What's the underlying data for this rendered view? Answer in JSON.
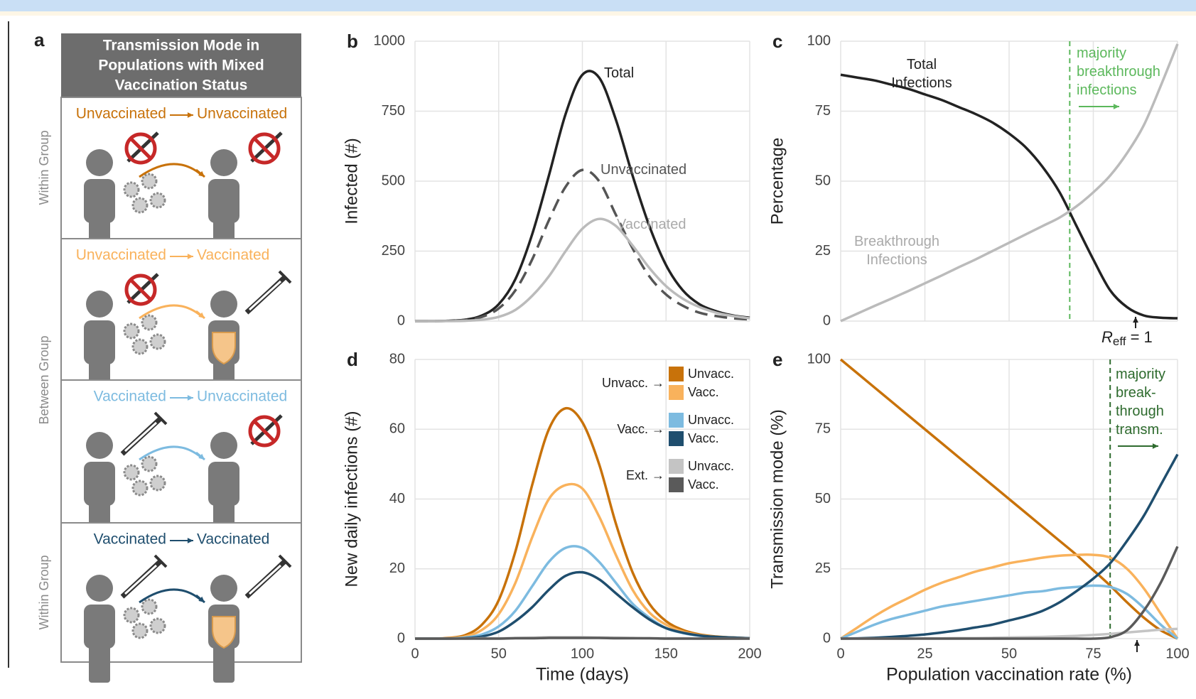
{
  "panel_a": {
    "label": "a",
    "title": [
      "Transmission Mode in",
      "Populations with Mixed",
      "Vaccination Status"
    ],
    "rows": [
      {
        "from": "Unvaccinated",
        "to": "Unvaccinated",
        "color": "#c8720a"
      },
      {
        "from": "Unvaccinated",
        "to": "Vaccinated",
        "color": "#f9b25c"
      },
      {
        "from": "Vaccinated",
        "to": "Unvaccinated",
        "color": "#7dbbe0"
      },
      {
        "from": "Vaccinated",
        "to": "Vaccinated",
        "color": "#1f4e6e"
      }
    ],
    "side_labels": [
      "Within Group",
      "Between Group",
      "Within Group"
    ]
  },
  "chart_data": [
    {
      "type": "line",
      "panel_label": "b",
      "ylabel": "Infected (#)",
      "x": [
        0,
        10,
        20,
        30,
        40,
        50,
        60,
        70,
        80,
        90,
        100,
        110,
        120,
        130,
        140,
        150,
        160,
        170,
        180,
        190,
        200
      ],
      "xlim": [
        0,
        200
      ],
      "xticks": [
        0,
        50,
        100,
        150,
        200
      ],
      "xtick_labels": false,
      "ylim": [
        0,
        1000
      ],
      "yticks": [
        0,
        250,
        500,
        750,
        1000
      ],
      "grid": true,
      "series": [
        {
          "name": "Total",
          "color": "#222222",
          "style": "solid",
          "values": [
            0,
            0,
            1,
            5,
            20,
            60,
            150,
            310,
            520,
            740,
            880,
            870,
            720,
            520,
            340,
            200,
            110,
            60,
            35,
            20,
            12
          ]
        },
        {
          "name": "Unvaccinated",
          "color": "#555555",
          "style": "dashed",
          "values": [
            0,
            0,
            1,
            4,
            15,
            45,
            110,
            220,
            360,
            480,
            540,
            500,
            380,
            260,
            160,
            95,
            55,
            30,
            18,
            10,
            6
          ]
        },
        {
          "name": "Vaccinated",
          "color": "#bbbbbb",
          "style": "solid",
          "values": [
            0,
            0,
            0,
            1,
            5,
            15,
            40,
            90,
            160,
            250,
            330,
            365,
            340,
            270,
            190,
            125,
            80,
            50,
            30,
            18,
            10
          ]
        }
      ]
    },
    {
      "type": "line",
      "panel_label": "c",
      "ylabel": "Percentage",
      "x": [
        0,
        5,
        10,
        15,
        20,
        25,
        30,
        35,
        40,
        45,
        50,
        55,
        60,
        65,
        70,
        75,
        80,
        85,
        90,
        95,
        100
      ],
      "xlim": [
        0,
        100
      ],
      "xticks": [
        0,
        25,
        50,
        75,
        100
      ],
      "xtick_labels": false,
      "ylim": [
        0,
        100
      ],
      "yticks": [
        0,
        25,
        50,
        75,
        100
      ],
      "grid": true,
      "vline": 68,
      "vline_color": "#5cb85c",
      "annotations": [
        "majority\nbreakthrough\ninfections"
      ],
      "reff_label": [
        "R",
        "eff",
        " = 1"
      ],
      "series": [
        {
          "name": "Total\nInfections",
          "color": "#222222",
          "style": "solid",
          "values": [
            88,
            87,
            86,
            84.5,
            83,
            81,
            79,
            76.5,
            74,
            71,
            67,
            62,
            55,
            46,
            34,
            22,
            11,
            5,
            2,
            1.2,
            1
          ]
        },
        {
          "name": "Breakthrough\nInfections",
          "color": "#bbbbbb",
          "style": "solid",
          "values": [
            0,
            2.7,
            5.4,
            8,
            10.7,
            13.5,
            16.3,
            19.2,
            22,
            25,
            28,
            31,
            34,
            37,
            41,
            46,
            52,
            60,
            70,
            84,
            99
          ]
        }
      ]
    },
    {
      "type": "line",
      "panel_label": "d",
      "xlabel": "Time (days)",
      "ylabel": "New daily infections (#)",
      "x": [
        0,
        10,
        20,
        30,
        40,
        50,
        60,
        70,
        80,
        90,
        100,
        110,
        120,
        130,
        140,
        150,
        160,
        170,
        180,
        190,
        200
      ],
      "xlim": [
        0,
        200
      ],
      "xticks": [
        0,
        50,
        100,
        150,
        200
      ],
      "ylim": [
        0,
        80
      ],
      "yticks": [
        0,
        20,
        40,
        60,
        80
      ],
      "grid": true,
      "legend_groups": [
        "Unvacc. →",
        "Vacc. →",
        "Ext. →"
      ],
      "series": [
        {
          "name": "Unvacc.",
          "color": "#c8720a",
          "style": "solid",
          "values": [
            0,
            0,
            0.2,
            1,
            4,
            11,
            25,
            44,
            60,
            66,
            62,
            50,
            33,
            19,
            10,
            5,
            2.5,
            1.2,
            0.6,
            0.3,
            0.1
          ]
        },
        {
          "name": "Vacc.",
          "color": "#f9b25c",
          "style": "solid",
          "values": [
            0,
            0,
            0.1,
            0.6,
            2.5,
            7,
            16,
            29,
            40,
            44,
            43,
            35,
            24,
            14,
            7.5,
            4,
            2,
            1,
            0.5,
            0.3,
            0.1
          ]
        },
        {
          "name": "Unvacc.",
          "color": "#7dbbe0",
          "style": "solid",
          "values": [
            0,
            0,
            0,
            0.3,
            1.2,
            3.5,
            8,
            15,
            22,
            26,
            26,
            22,
            16,
            10,
            6,
            3,
            1.6,
            0.8,
            0.4,
            0.2,
            0.1
          ]
        },
        {
          "name": "Vacc.",
          "color": "#1f4e6e",
          "style": "solid",
          "values": [
            0,
            0,
            0,
            0.1,
            0.6,
            2,
            5,
            9,
            14,
            18,
            19,
            17,
            13,
            9,
            5.5,
            3,
            1.7,
            0.9,
            0.5,
            0.3,
            0.1
          ]
        },
        {
          "name": "Unvacc.",
          "color": "#c4c4c4",
          "style": "solid",
          "values": [
            0,
            0,
            0,
            0,
            0.1,
            0.1,
            0.2,
            0.3,
            0.4,
            0.4,
            0.4,
            0.3,
            0.3,
            0.2,
            0.1,
            0.1,
            0.1,
            0,
            0,
            0,
            0
          ]
        },
        {
          "name": "Vacc.",
          "color": "#5a5a5a",
          "style": "solid",
          "values": [
            0,
            0,
            0,
            0,
            0,
            0,
            0.1,
            0.1,
            0.2,
            0.2,
            0.2,
            0.2,
            0.1,
            0.1,
            0.1,
            0,
            0,
            0,
            0,
            0,
            0
          ]
        }
      ]
    },
    {
      "type": "line",
      "panel_label": "e",
      "xlabel": "Population vaccination rate (%)",
      "ylabel": "Transmission mode (%)",
      "x": [
        0,
        5,
        10,
        15,
        20,
        25,
        30,
        35,
        40,
        45,
        50,
        55,
        60,
        65,
        70,
        75,
        80,
        85,
        90,
        95,
        100
      ],
      "xlim": [
        0,
        100
      ],
      "xticks": [
        0,
        25,
        50,
        75,
        100
      ],
      "ylim": [
        0,
        100
      ],
      "yticks": [
        0,
        25,
        50,
        75,
        100
      ],
      "grid": true,
      "vline": 80,
      "vline_color": "#2e6b2e",
      "annotations": [
        "majority\nbreak-\nthrough\ntransm."
      ],
      "series": [
        {
          "color": "#c8720a",
          "style": "solid",
          "values": [
            100,
            95,
            90,
            85,
            80,
            75,
            70,
            65,
            60,
            55,
            50,
            45,
            40,
            35,
            30,
            24.5,
            19,
            13,
            7.5,
            3,
            0
          ]
        },
        {
          "color": "#f9b25c",
          "style": "solid",
          "values": [
            0,
            4,
            8,
            11.5,
            14.5,
            17.5,
            20,
            22,
            24,
            25.5,
            27,
            28,
            29,
            29.7,
            30,
            30,
            29,
            25,
            18,
            9,
            0
          ]
        },
        {
          "color": "#7dbbe0",
          "style": "solid",
          "values": [
            0,
            2.5,
            5,
            7,
            8.5,
            10,
            11.5,
            12.5,
            13.5,
            14.5,
            15.5,
            16.5,
            17,
            18,
            18.5,
            19,
            18.5,
            16,
            11,
            5,
            0
          ]
        },
        {
          "color": "#1f4e6e",
          "style": "solid",
          "values": [
            0,
            0.1,
            0.3,
            0.6,
            1,
            1.5,
            2.2,
            3,
            4,
            5,
            6.5,
            8,
            10,
            13,
            17,
            21.5,
            27,
            35,
            44,
            55,
            66
          ]
        },
        {
          "color": "#c4c4c4",
          "style": "solid",
          "values": [
            0,
            0,
            0,
            0,
            0,
            0.1,
            0.1,
            0.2,
            0.2,
            0.3,
            0.4,
            0.5,
            0.6,
            0.8,
            1,
            1.3,
            1.7,
            2.2,
            2.7,
            3.2,
            3.5
          ]
        },
        {
          "color": "#5a5a5a",
          "style": "solid",
          "values": [
            0,
            0,
            0,
            0,
            0,
            0,
            0,
            0,
            0,
            0,
            0,
            0,
            0,
            0,
            0,
            0,
            0.5,
            3,
            10,
            20,
            33
          ]
        }
      ]
    }
  ]
}
